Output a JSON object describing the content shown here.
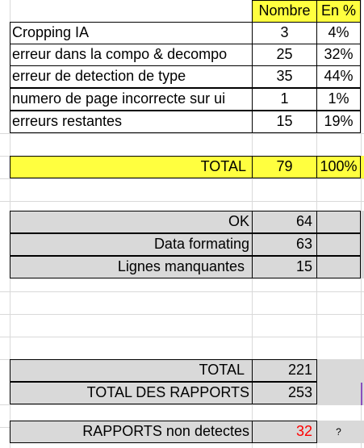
{
  "headers": {
    "nombre": "Nombre",
    "pct": "En %"
  },
  "rows": [
    {
      "label": "Cropping IA",
      "nombre": "3",
      "pct": "4%"
    },
    {
      "label": "erreur dans la compo & decompo",
      "nombre": "25",
      "pct": "32%"
    },
    {
      "label": "erreur de detection de type",
      "nombre": "35",
      "pct": "44%"
    },
    {
      "label": "numero de page incorrecte sur ui",
      "nombre": "1",
      "pct": "1%"
    },
    {
      "label": "erreurs restantes",
      "nombre": "15",
      "pct": "19%"
    }
  ],
  "total": {
    "label": "TOTAL",
    "nombre": "79",
    "pct": "100%"
  },
  "status": [
    {
      "label": "OK",
      "value": "64"
    },
    {
      "label": "Data formating",
      "value": "63"
    },
    {
      "label": "Lignes manquantes",
      "value": "15"
    }
  ],
  "summary": [
    {
      "label": "TOTAL",
      "value": "221"
    },
    {
      "label": "TOTAL DES RAPPORTS",
      "value": "253"
    }
  ],
  "undetected": {
    "label": "RAPPORTS non detectes",
    "value": "32",
    "note": "?"
  },
  "colors": {
    "highlight": "#ffff3f",
    "gray": "#d9d9d9",
    "alert": "#ff0000",
    "selection": "#8b4fbd"
  }
}
